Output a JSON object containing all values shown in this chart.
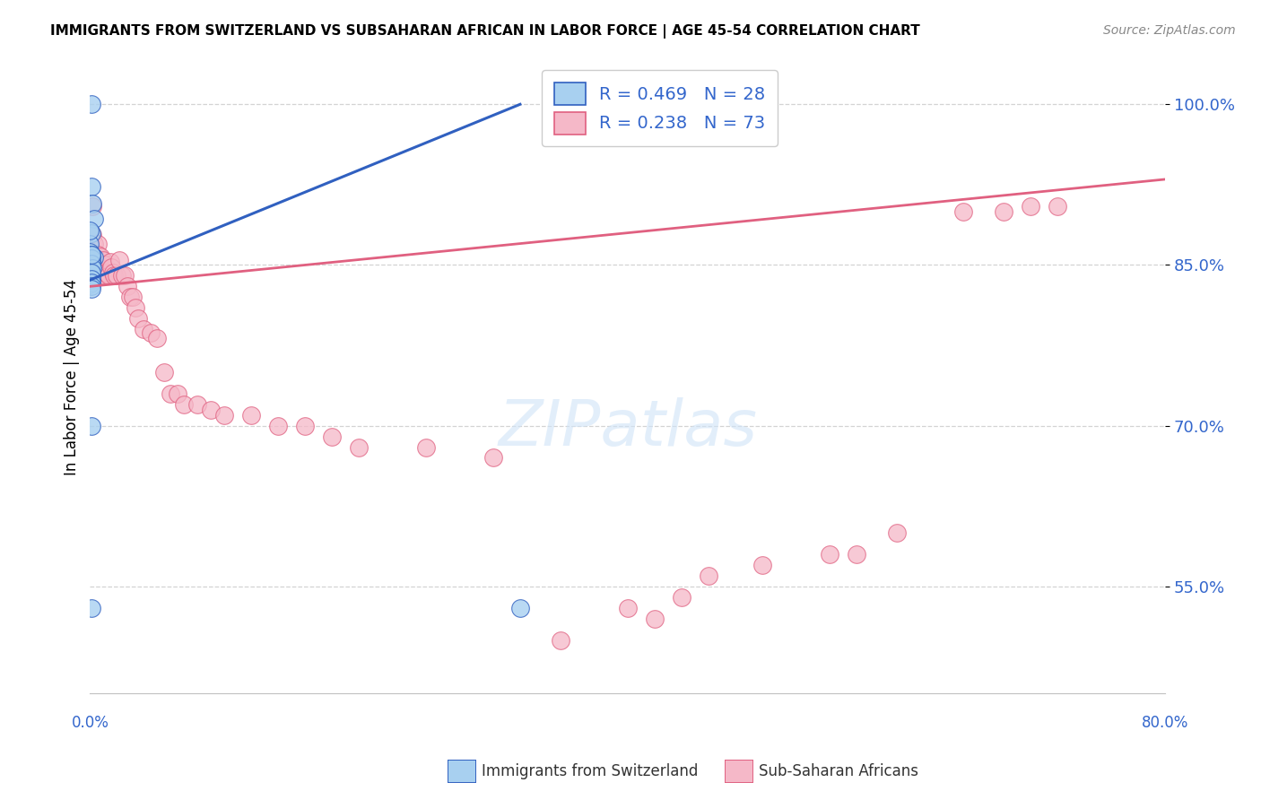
{
  "title": "IMMIGRANTS FROM SWITZERLAND VS SUBSAHARAN AFRICAN IN LABOR FORCE | AGE 45-54 CORRELATION CHART",
  "source": "Source: ZipAtlas.com",
  "ylabel": "In Labor Force | Age 45-54",
  "xlim": [
    0.0,
    0.8
  ],
  "ylim": [
    0.45,
    1.04
  ],
  "ytick_positions": [
    0.55,
    0.7,
    0.85,
    1.0
  ],
  "ytick_labels": [
    "55.0%",
    "70.0%",
    "85.0%",
    "100.0%"
  ],
  "legend_r_swiss": "R = 0.469",
  "legend_n_swiss": "N = 28",
  "legend_r_african": "R = 0.238",
  "legend_n_african": "N = 73",
  "color_swiss": "#a8d0f0",
  "color_african": "#f5b8c8",
  "color_swiss_line": "#3060c0",
  "color_african_line": "#e06080",
  "color_axis_labels": "#3366cc",
  "swiss_x": [
    0.001,
    0.002,
    0.003,
    0.001,
    0.0,
    0.0,
    0.003,
    0.001,
    0.001,
    0.001,
    0.001,
    0.001,
    0.0,
    0.0,
    0.001,
    0.001,
    0.001,
    0.002,
    0.001,
    0.001,
    0.001,
    0.001,
    0.001,
    0.001,
    0.001,
    0.001,
    0.001,
    0.32
  ],
  "swiss_y": [
    0.923,
    0.907,
    0.893,
    0.88,
    0.87,
    0.862,
    0.857,
    0.852,
    0.848,
    0.844,
    0.84,
    0.836,
    0.832,
    0.882,
    0.86,
    0.856,
    0.851,
    0.847,
    0.843,
    0.837,
    0.834,
    0.83,
    0.828,
    0.86,
    0.7,
    0.53,
    1.0,
    0.53
  ],
  "african_x": [
    0.0,
    0.0,
    0.0,
    0.001,
    0.001,
    0.001,
    0.001,
    0.001,
    0.002,
    0.002,
    0.002,
    0.003,
    0.003,
    0.004,
    0.004,
    0.005,
    0.005,
    0.006,
    0.006,
    0.006,
    0.007,
    0.007,
    0.008,
    0.008,
    0.009,
    0.01,
    0.011,
    0.012,
    0.013,
    0.014,
    0.015,
    0.016,
    0.017,
    0.018,
    0.02,
    0.022,
    0.024,
    0.026,
    0.028,
    0.03,
    0.032,
    0.034,
    0.036,
    0.04,
    0.045,
    0.05,
    0.055,
    0.06,
    0.065,
    0.07,
    0.08,
    0.09,
    0.1,
    0.12,
    0.14,
    0.16,
    0.18,
    0.2,
    0.25,
    0.3,
    0.35,
    0.4,
    0.42,
    0.44,
    0.46,
    0.5,
    0.55,
    0.57,
    0.6,
    0.65,
    0.68,
    0.7,
    0.72
  ],
  "african_y": [
    0.856,
    0.85,
    0.843,
    0.86,
    0.852,
    0.847,
    0.843,
    0.838,
    0.905,
    0.878,
    0.86,
    0.87,
    0.855,
    0.855,
    0.848,
    0.855,
    0.84,
    0.87,
    0.86,
    0.85,
    0.85,
    0.84,
    0.858,
    0.845,
    0.84,
    0.855,
    0.85,
    0.843,
    0.842,
    0.84,
    0.853,
    0.848,
    0.843,
    0.84,
    0.84,
    0.855,
    0.84,
    0.84,
    0.83,
    0.82,
    0.82,
    0.81,
    0.8,
    0.79,
    0.787,
    0.782,
    0.75,
    0.73,
    0.73,
    0.72,
    0.72,
    0.715,
    0.71,
    0.71,
    0.7,
    0.7,
    0.69,
    0.68,
    0.68,
    0.67,
    0.5,
    0.53,
    0.52,
    0.54,
    0.56,
    0.57,
    0.58,
    0.58,
    0.6,
    0.9,
    0.9,
    0.905,
    0.905
  ],
  "swiss_line_x": [
    0.0,
    0.32
  ],
  "swiss_line_y": [
    0.836,
    1.0
  ],
  "african_line_x": [
    0.0,
    0.8
  ],
  "african_line_y": [
    0.83,
    0.93
  ]
}
